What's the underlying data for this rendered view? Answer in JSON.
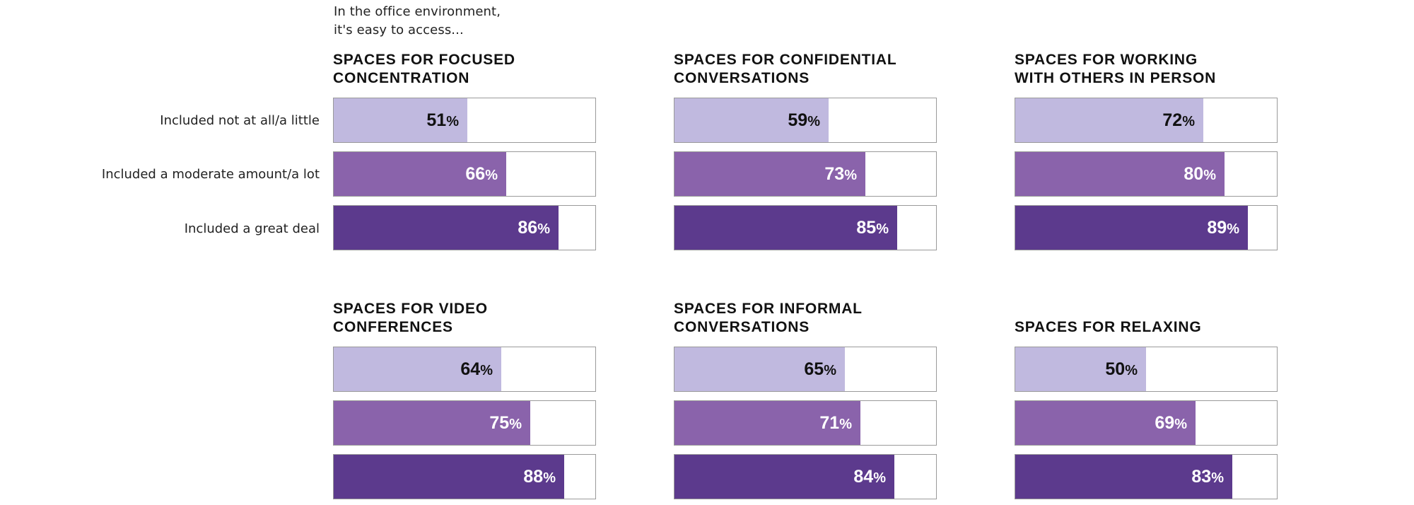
{
  "intro": {
    "line1": "In the office environment,",
    "line2": "it's easy to access..."
  },
  "row_labels": [
    "Included not at all/a little",
    "Included a moderate amount/a lot",
    "Included a great deal"
  ],
  "colors": {
    "level_1": "#c0b9df",
    "level_2": "#8a63ab",
    "level_3": "#5c3a8d",
    "text_on_level_1": "#111111",
    "text_on_dark": "#ffffff",
    "frame_border": "#9a9a9a"
  },
  "chart_data": [
    {
      "type": "bar",
      "title_lines": [
        "SPACES FOR FOCUSED",
        "CONCENTRATION"
      ],
      "categories": [
        "Included not at all/a little",
        "Included a moderate amount/a lot",
        "Included a great deal"
      ],
      "values": [
        51,
        66,
        86
      ],
      "unit": "%",
      "ylim": [
        0,
        100
      ]
    },
    {
      "type": "bar",
      "title_lines": [
        "SPACES FOR CONFIDENTIAL",
        "CONVERSATIONS"
      ],
      "categories": [
        "Included not at all/a little",
        "Included a moderate amount/a lot",
        "Included a great deal"
      ],
      "values": [
        59,
        73,
        85
      ],
      "unit": "%",
      "ylim": [
        0,
        100
      ]
    },
    {
      "type": "bar",
      "title_lines": [
        "SPACES FOR WORKING",
        "WITH OTHERS IN PERSON"
      ],
      "categories": [
        "Included not at all/a little",
        "Included a moderate amount/a lot",
        "Included a great deal"
      ],
      "values": [
        72,
        80,
        89
      ],
      "unit": "%",
      "ylim": [
        0,
        100
      ]
    },
    {
      "type": "bar",
      "title_lines": [
        "SPACES FOR VIDEO",
        "CONFERENCES"
      ],
      "categories": [
        "Included not at all/a little",
        "Included a moderate amount/a lot",
        "Included a great deal"
      ],
      "values": [
        64,
        75,
        88
      ],
      "unit": "%",
      "ylim": [
        0,
        100
      ]
    },
    {
      "type": "bar",
      "title_lines": [
        "SPACES FOR INFORMAL",
        "CONVERSATIONS"
      ],
      "categories": [
        "Included not at all/a little",
        "Included a moderate amount/a lot",
        "Included a great deal"
      ],
      "values": [
        65,
        71,
        84
      ],
      "unit": "%",
      "ylim": [
        0,
        100
      ]
    },
    {
      "type": "bar",
      "title_lines": [
        "SPACES FOR RELAXING"
      ],
      "categories": [
        "Included not at all/a little",
        "Included a moderate amount/a lot",
        "Included a great deal"
      ],
      "values": [
        50,
        69,
        83
      ],
      "unit": "%",
      "ylim": [
        0,
        100
      ]
    }
  ]
}
